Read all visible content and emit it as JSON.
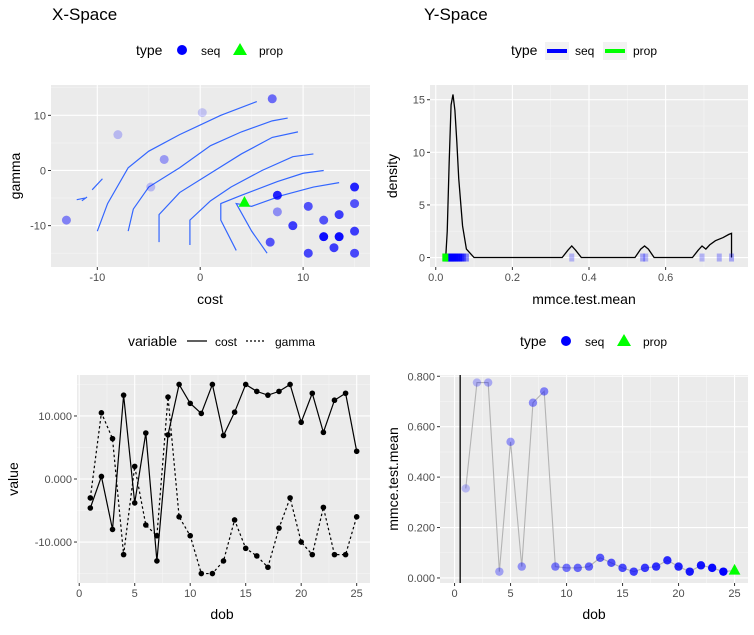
{
  "figure": {
    "left_title": "X-Space",
    "right_title": "Y-Space"
  },
  "chart_data": [
    {
      "id": "xspace",
      "type": "scatter",
      "xlabel": "cost",
      "ylabel": "gamma",
      "xlim": [
        -14.5,
        16.5
      ],
      "ylim": [
        -17.5,
        15.5
      ],
      "xticks": [
        -10,
        0,
        10
      ],
      "yticks": [
        -10,
        0,
        10
      ],
      "grid": true,
      "legend": {
        "title": "type",
        "position": "top",
        "labels": [
          "seq",
          "prop"
        ]
      },
      "colors": {
        "seq": "#0000ff",
        "prop": "#00ff00",
        "contour": "#3366ff",
        "panel": "#ebebeb"
      },
      "seq_points": [
        {
          "x": 7,
          "y": 13,
          "a": 0.55
        },
        {
          "x": 0.2,
          "y": 10.5,
          "a": 0.18
        },
        {
          "x": -8,
          "y": 6.5,
          "a": 0.22
        },
        {
          "x": -3.5,
          "y": 2,
          "a": 0.35
        },
        {
          "x": -4.8,
          "y": -3,
          "a": 0.22
        },
        {
          "x": -13,
          "y": -9,
          "a": 0.45
        },
        {
          "x": 7.5,
          "y": -4.5,
          "a": 0.85
        },
        {
          "x": 7.5,
          "y": -7.5,
          "a": 0.4
        },
        {
          "x": 6.8,
          "y": -13,
          "a": 0.65
        },
        {
          "x": 9,
          "y": -10,
          "a": 0.75
        },
        {
          "x": 10.5,
          "y": -6.5,
          "a": 0.65
        },
        {
          "x": 12,
          "y": -9,
          "a": 0.65
        },
        {
          "x": 13.5,
          "y": -8,
          "a": 0.75
        },
        {
          "x": 15,
          "y": -3,
          "a": 0.85
        },
        {
          "x": 15,
          "y": -6,
          "a": 0.65
        },
        {
          "x": 15,
          "y": -11,
          "a": 0.75
        },
        {
          "x": 12,
          "y": -12,
          "a": 0.95
        },
        {
          "x": 13.5,
          "y": -12,
          "a": 0.95
        },
        {
          "x": 13,
          "y": -14,
          "a": 0.75
        },
        {
          "x": 10.5,
          "y": -15,
          "a": 0.7
        },
        {
          "x": 15,
          "y": -15,
          "a": 0.7
        }
      ],
      "prop_points": [
        {
          "x": 4.3,
          "y": -5.8
        }
      ],
      "contours": [
        [
          [
            -11.5,
            -5.5
          ],
          [
            -11,
            -4.8
          ]
        ],
        [
          [
            -12,
            -5.3
          ],
          [
            -11.2,
            -5.0
          ]
        ],
        [
          [
            -10.5,
            -3.5
          ],
          [
            -9.5,
            -1.5
          ]
        ],
        [
          [
            -10,
            -11
          ],
          [
            -9,
            -6
          ],
          [
            -7,
            0.5
          ],
          [
            -5,
            3.5
          ],
          [
            -2,
            6.5
          ],
          [
            2,
            10
          ],
          [
            5.5,
            12.5
          ]
        ],
        [
          [
            -7,
            -11
          ],
          [
            -6.5,
            -7
          ],
          [
            -5,
            -3
          ],
          [
            -2,
            0.5
          ],
          [
            1,
            4.5
          ],
          [
            4,
            7
          ],
          [
            7,
            9
          ],
          [
            8.5,
            9.5
          ]
        ],
        [
          [
            -4,
            -13
          ],
          [
            -4,
            -8
          ],
          [
            -2,
            -4
          ],
          [
            1,
            -0.5
          ],
          [
            4,
            3
          ],
          [
            7,
            6
          ],
          [
            9.5,
            7
          ]
        ],
        [
          [
            -1,
            -13.5
          ],
          [
            -1,
            -9
          ],
          [
            1,
            -5.5
          ],
          [
            3,
            -3
          ],
          [
            6,
            0
          ],
          [
            9,
            2.5
          ],
          [
            11,
            3
          ]
        ],
        [
          [
            3.5,
            -14.5
          ],
          [
            2,
            -9
          ],
          [
            2,
            -6
          ],
          [
            4,
            -4.5
          ],
          [
            7.5,
            -2
          ],
          [
            10,
            -0.5
          ],
          [
            12,
            0
          ]
        ],
        [
          [
            6.5,
            -15
          ],
          [
            5,
            -11
          ],
          [
            3.5,
            -6
          ],
          [
            5,
            -6.5
          ],
          [
            8,
            -4.5
          ],
          [
            11,
            -3
          ],
          [
            13.5,
            -2.2
          ]
        ]
      ]
    },
    {
      "id": "yspace",
      "type": "line",
      "xlabel": "mmce.test.mean",
      "ylabel": "density",
      "xlim": [
        -0.015,
        0.815
      ],
      "ylim": [
        -0.9,
        16.4
      ],
      "xticks": [
        0.0,
        0.2,
        0.4,
        0.6
      ],
      "xtick_labels": [
        "0.0",
        "0.2",
        "0.4",
        "0.6"
      ],
      "yticks": [
        0,
        5,
        10,
        15
      ],
      "grid": true,
      "legend": {
        "title": "type",
        "position": "top",
        "labels": [
          "seq",
          "prop"
        ]
      },
      "colors": {
        "seq": "#0000ff",
        "prop": "#00ff00",
        "line": "#000000",
        "panel": "#ebebeb"
      },
      "density_curve": [
        [
          0.026,
          0
        ],
        [
          0.03,
          2.5
        ],
        [
          0.035,
          9
        ],
        [
          0.04,
          14.5
        ],
        [
          0.045,
          15.5
        ],
        [
          0.05,
          14
        ],
        [
          0.055,
          11
        ],
        [
          0.06,
          7.5
        ],
        [
          0.07,
          3
        ],
        [
          0.08,
          0.8
        ],
        [
          0.1,
          0
        ],
        [
          0.33,
          0
        ],
        [
          0.345,
          0.7
        ],
        [
          0.355,
          1.1
        ],
        [
          0.365,
          0.7
        ],
        [
          0.38,
          0
        ],
        [
          0.52,
          0
        ],
        [
          0.535,
          0.8
        ],
        [
          0.545,
          1.1
        ],
        [
          0.555,
          0.8
        ],
        [
          0.57,
          0
        ],
        [
          0.67,
          0
        ],
        [
          0.685,
          0.7
        ],
        [
          0.695,
          1.1
        ],
        [
          0.705,
          0.8
        ],
        [
          0.715,
          1.2
        ],
        [
          0.73,
          1.6
        ],
        [
          0.75,
          1.9
        ],
        [
          0.765,
          2.2
        ],
        [
          0.772,
          2.3
        ],
        [
          0.772,
          0
        ]
      ],
      "seq_rug": [
        {
          "x": 0.026,
          "a": 0.95
        },
        {
          "x": 0.03,
          "a": 0.95
        },
        {
          "x": 0.033,
          "a": 0.9
        },
        {
          "x": 0.037,
          "a": 0.9
        },
        {
          "x": 0.04,
          "a": 0.85
        },
        {
          "x": 0.042,
          "a": 0.85
        },
        {
          "x": 0.046,
          "a": 0.85
        },
        {
          "x": 0.05,
          "a": 0.8
        },
        {
          "x": 0.053,
          "a": 0.8
        },
        {
          "x": 0.058,
          "a": 0.75
        },
        {
          "x": 0.062,
          "a": 0.75
        },
        {
          "x": 0.067,
          "a": 0.7
        },
        {
          "x": 0.072,
          "a": 0.55
        },
        {
          "x": 0.08,
          "a": 0.45
        },
        {
          "x": 0.355,
          "a": 0.25
        },
        {
          "x": 0.54,
          "a": 0.3
        },
        {
          "x": 0.548,
          "a": 0.25
        },
        {
          "x": 0.695,
          "a": 0.25
        },
        {
          "x": 0.74,
          "a": 0.28
        },
        {
          "x": 0.772,
          "a": 0.3
        }
      ],
      "prop_points": [
        {
          "x": 0.025,
          "y": 0
        }
      ]
    },
    {
      "id": "xtrace",
      "type": "line",
      "xlabel": "dob",
      "ylabel": "value",
      "xlim": [
        -0.2,
        26.2
      ],
      "ylim": [
        -16.5,
        16.5
      ],
      "xticks": [
        0,
        5,
        10,
        15,
        20,
        25
      ],
      "yticks": [
        -10,
        0,
        10
      ],
      "ytick_labels": [
        "-10.000",
        "0.000",
        "10.000"
      ],
      "grid": true,
      "legend": {
        "title": "variable",
        "position": "top",
        "labels": [
          "cost",
          "gamma"
        ]
      },
      "x": [
        1,
        2,
        3,
        4,
        5,
        6,
        7,
        8,
        9,
        10,
        11,
        12,
        13,
        14,
        15,
        16,
        17,
        18,
        19,
        20,
        21,
        22,
        23,
        24,
        25
      ],
      "series": [
        {
          "name": "cost",
          "values": [
            -4.6,
            0.4,
            -8,
            13.3,
            -3.8,
            7.3,
            -13,
            7,
            15,
            12,
            10.4,
            15,
            6.9,
            10.6,
            15,
            13.9,
            13.3,
            13.9,
            15,
            9,
            13.6,
            7.4,
            12.5,
            13.6,
            4.4
          ]
        },
        {
          "name": "gamma",
          "values": [
            -3,
            10.5,
            6.4,
            -12,
            2,
            -7.3,
            -9,
            13,
            -6,
            -9,
            -15,
            -15,
            -13,
            -6.5,
            -11,
            -12.2,
            -14,
            -7.8,
            -3,
            -10,
            -12,
            -4.5,
            -12,
            -12,
            -6
          ]
        }
      ]
    },
    {
      "id": "ytrace",
      "type": "line",
      "xlabel": "dob",
      "ylabel": "mmce.test.mean",
      "xlim": [
        -1.3,
        26.2
      ],
      "ylim": [
        -0.02,
        0.805
      ],
      "xticks": [
        0,
        5,
        10,
        15,
        20,
        25
      ],
      "yticks": [
        0,
        0.2,
        0.4,
        0.6,
        0.8
      ],
      "ytick_labels": [
        "0.000",
        "0.200",
        "0.400",
        "0.600",
        "0.800"
      ],
      "vline": 0.5,
      "grid": true,
      "legend": {
        "title": "type",
        "position": "top",
        "labels": [
          "seq",
          "prop"
        ]
      },
      "colors": {
        "seq": "#0000ff",
        "prop": "#00ff00",
        "path": "#b3b3b3",
        "panel": "#ebebeb"
      },
      "x": [
        1,
        2,
        3,
        4,
        5,
        6,
        7,
        8,
        9,
        10,
        11,
        12,
        13,
        14,
        15,
        16,
        17,
        18,
        19,
        20,
        21,
        22,
        23,
        24,
        25
      ],
      "values": [
        0.355,
        0.775,
        0.775,
        0.025,
        0.54,
        0.045,
        0.695,
        0.74,
        0.045,
        0.04,
        0.04,
        0.045,
        0.08,
        0.06,
        0.04,
        0.025,
        0.04,
        0.045,
        0.07,
        0.045,
        0.025,
        0.05,
        0.04,
        0.025,
        0.03
      ],
      "point_types": [
        "seq",
        "seq",
        "seq",
        "seq",
        "seq",
        "seq",
        "seq",
        "seq",
        "seq",
        "seq",
        "seq",
        "seq",
        "seq",
        "seq",
        "seq",
        "seq",
        "seq",
        "seq",
        "seq",
        "seq",
        "seq",
        "seq",
        "seq",
        "seq",
        "prop"
      ]
    }
  ]
}
